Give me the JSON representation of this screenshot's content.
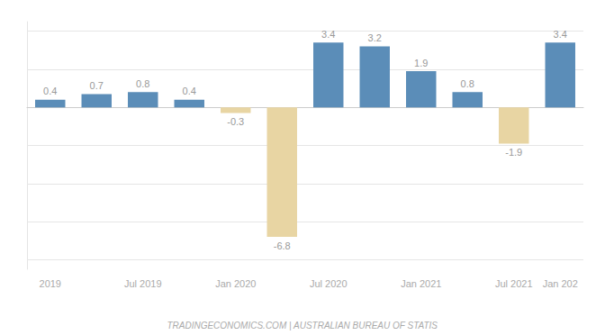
{
  "chart_data": {
    "type": "bar",
    "categories": [
      "2019",
      null,
      "Jul 2019",
      null,
      "Jan 2020",
      null,
      "Jul 2020",
      null,
      "Jan 2021",
      null,
      "Jul 2021",
      "Jan 202"
    ],
    "values": [
      0.4,
      0.7,
      0.8,
      0.4,
      -0.3,
      -6.8,
      3.4,
      3.2,
      1.9,
      0.8,
      -1.9,
      3.4
    ],
    "colors": [
      "#5b8db8",
      "#5b8db8",
      "#5b8db8",
      "#5b8db8",
      "#e8d5a3",
      "#e8d5a3",
      "#5b8db8",
      "#5b8db8",
      "#5b8db8",
      "#5b8db8",
      "#e8d5a3",
      "#5b8db8"
    ],
    "ylim": [
      -8.5,
      4.5
    ],
    "yticks": [
      -8,
      -6,
      -4,
      -2,
      0,
      2,
      4
    ],
    "grid": true,
    "tick_labels": "x",
    "data_labels": true,
    "annotations": [
      "TRADINGECONOMICS.COM | AUSTRALIAN BUREAU OF STATIS"
    ]
  }
}
